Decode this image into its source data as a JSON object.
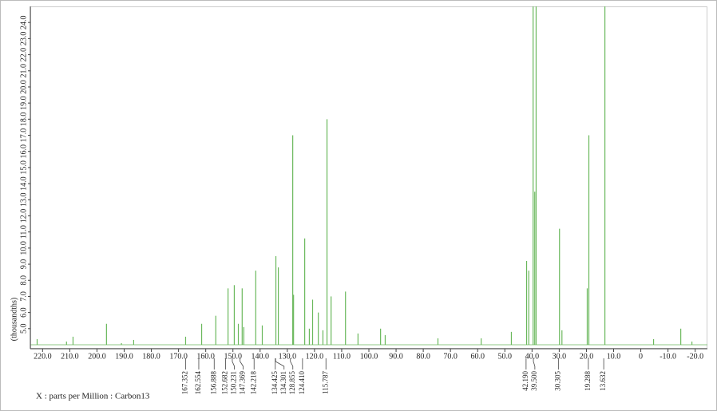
{
  "chart_data": {
    "type": "stem",
    "x_label": "X : parts per Million : Carbon13",
    "y_label": "(thousandths)",
    "xlim": [
      224.5,
      -24.5
    ],
    "ylim": [
      4.0,
      25.0
    ],
    "xticks": [
      {
        "value": 220,
        "label": "220.0"
      },
      {
        "value": 210,
        "label": "210.0"
      },
      {
        "value": 200,
        "label": "200.0"
      },
      {
        "value": 190,
        "label": "190.0"
      },
      {
        "value": 180,
        "label": "180.0"
      },
      {
        "value": 170,
        "label": "170.0"
      },
      {
        "value": 160,
        "label": "160.0"
      },
      {
        "value": 150,
        "label": "150.0"
      },
      {
        "value": 140,
        "label": "140.0"
      },
      {
        "value": 130,
        "label": "130.0"
      },
      {
        "value": 120,
        "label": "120.0"
      },
      {
        "value": 110,
        "label": "110.0"
      },
      {
        "value": 100,
        "label": "100.0"
      },
      {
        "value": 90,
        "label": "90.0"
      },
      {
        "value": 80,
        "label": "80.0"
      },
      {
        "value": 70,
        "label": "70.0"
      },
      {
        "value": 60,
        "label": "60.0"
      },
      {
        "value": 50,
        "label": "50.0"
      },
      {
        "value": 40,
        "label": "40.0"
      },
      {
        "value": 30,
        "label": "30.0"
      },
      {
        "value": 20,
        "label": "20.0"
      },
      {
        "value": 10,
        "label": "10.0"
      },
      0,
      {
        "value": -10,
        "label": "-10.0"
      },
      {
        "value": -20,
        "label": "-20.0"
      }
    ],
    "yticks": [
      {
        "value": 5,
        "label": "5.0"
      },
      {
        "value": 6,
        "label": "6.0"
      },
      {
        "value": 7,
        "label": "7.0"
      },
      {
        "value": 8,
        "label": "8.0"
      },
      {
        "value": 9,
        "label": "9.0"
      },
      {
        "value": 10,
        "label": "10.0"
      },
      {
        "value": 11,
        "label": "11.0"
      },
      {
        "value": 12,
        "label": "12.0"
      },
      {
        "value": 13,
        "label": "13.0"
      },
      {
        "value": 14,
        "label": "14.0"
      },
      {
        "value": 15,
        "label": "15.0"
      },
      {
        "value": 16,
        "label": "16.0"
      },
      {
        "value": 17,
        "label": "17.0"
      },
      {
        "value": 18,
        "label": "18.0"
      },
      {
        "value": 19,
        "label": "19.0"
      },
      {
        "value": 20,
        "label": "20.0"
      },
      {
        "value": 21,
        "label": "21.0"
      },
      {
        "value": 22,
        "label": "22.0"
      },
      {
        "value": 23,
        "label": "23.0"
      },
      {
        "value": 24,
        "label": "24.0"
      }
    ],
    "color": "#6ab85c",
    "x": [
      222.0,
      211.2,
      208.8,
      196.5,
      191.0,
      186.5,
      167.4,
      161.5,
      156.3,
      151.8,
      149.5,
      148.0,
      146.6,
      146.0,
      141.6,
      139.2,
      134.2,
      133.3,
      128.0,
      127.7,
      123.6,
      121.9,
      120.7,
      118.6,
      116.9,
      115.4,
      113.9,
      108.6,
      104.0,
      95.7,
      94.0,
      74.6,
      58.7,
      47.6,
      42.0,
      41.2,
      39.6,
      39.0,
      38.5,
      29.9,
      29.0,
      19.7,
      19.1,
      13.2,
      -4.7,
      -14.7,
      -18.8
    ],
    "values": [
      4.35,
      4.2,
      4.5,
      5.3,
      4.1,
      4.3,
      4.5,
      5.3,
      5.8,
      7.5,
      7.7,
      5.3,
      7.5,
      5.1,
      8.6,
      5.2,
      9.5,
      8.8,
      17.0,
      7.1,
      10.6,
      5.0,
      6.8,
      6.0,
      4.9,
      18.0,
      7.0,
      7.3,
      4.7,
      5.0,
      4.6,
      4.4,
      4.4,
      4.8,
      9.2,
      8.6,
      25.0,
      13.5,
      25.0,
      11.2,
      4.9,
      7.5,
      17.0,
      25.0,
      4.35,
      5.0,
      4.2
    ],
    "peak_labels": [
      167.352,
      162.554,
      156.888,
      152.682,
      150.231,
      147.369,
      142.218,
      134.425,
      134.301,
      128.855,
      {
        "value": 124.41,
        "label": "124.410"
      },
      115.787,
      {
        "value": 42.19,
        "label": "42.190"
      },
      {
        "value": 39.5,
        "label": "39.500"
      },
      30.305,
      19.288,
      13.632
    ]
  }
}
